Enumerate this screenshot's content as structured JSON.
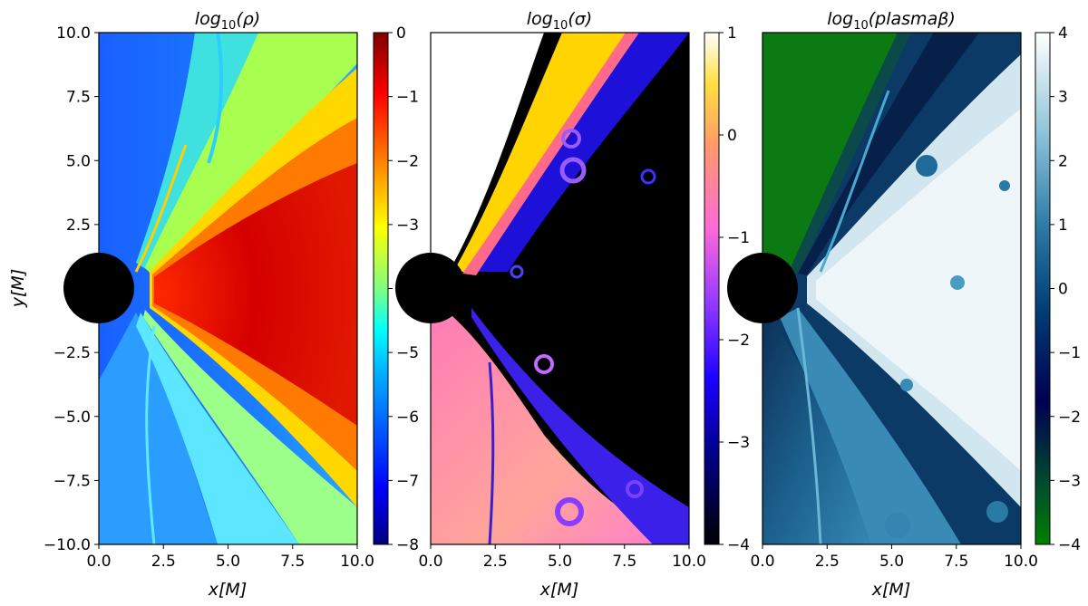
{
  "chart_data": [
    {
      "type": "heatmap",
      "title": "log₁₀(ρ)",
      "title_parts": {
        "pre": "log",
        "sub": "10",
        "post": "(ρ)"
      },
      "xlabel": "x[M]",
      "ylabel": "y[M]",
      "xlim": [
        0.0,
        10.0
      ],
      "ylim": [
        -10.0,
        10.0
      ],
      "x_ticks": [
        "0.0",
        "2.5",
        "5.0",
        "7.5",
        "10.0"
      ],
      "y_ticks": [
        "10.0",
        "7.5",
        "5.0",
        "2.5",
        "0.0",
        "−2.5",
        "−5.0",
        "−7.5",
        "−10.0"
      ],
      "colorbar": {
        "colormap": "jet",
        "range": [
          -8,
          0
        ],
        "ticks": [
          "0",
          "−1",
          "−2",
          "−3",
          "−4",
          "−5",
          "−6",
          "−7",
          "−8"
        ],
        "colors": [
          "#00007f",
          "#0000ff",
          "#007fff",
          "#00ffff",
          "#7fff7f",
          "#ffff00",
          "#ff7f00",
          "#ff0000",
          "#7f0000"
        ]
      },
      "black_hole_radius": 1.3,
      "colors": {
        "background": "#1e74ff",
        "jet": "#4fd3ff",
        "disk": "#e81c00",
        "wedge_edge": "#ffd500"
      }
    },
    {
      "type": "heatmap",
      "title": "log₁₀(σ)",
      "title_parts": {
        "pre": "log",
        "sub": "10",
        "post": "(σ)"
      },
      "xlabel": "x[M]",
      "ylabel": "",
      "xlim": [
        0.0,
        10.0
      ],
      "ylim": [
        -10.0,
        10.0
      ],
      "x_ticks": [
        "0.0",
        "2.5",
        "5.0",
        "7.5",
        "10.0"
      ],
      "colorbar": {
        "colormap": "gnuplot2",
        "range": [
          -4,
          1
        ],
        "ticks": [
          "1",
          "0",
          "−1",
          "−2",
          "−3",
          "−4"
        ],
        "colors": [
          "#000000",
          "#0000ff",
          "#7a19ff",
          "#ff5fd6",
          "#ffb060",
          "#ffff40",
          "#ffffff"
        ]
      },
      "black_hole_radius": 1.3,
      "colors": {
        "background": "#000000",
        "jet": "#ffffff",
        "lower_sheath": "#ff8cb4",
        "edge": "#ffd800",
        "eddies": "#6a3cff"
      }
    },
    {
      "type": "heatmap",
      "title": "log₁₀(plasmaβ)",
      "title_parts": {
        "pre": "log",
        "sub": "10",
        "post": "(plasmaβ)"
      },
      "xlabel": "x[M]",
      "ylabel": "",
      "xlim": [
        0.0,
        10.0
      ],
      "ylim": [
        -10.0,
        10.0
      ],
      "x_ticks": [
        "0.0",
        "2.5",
        "5.0",
        "7.5",
        "10.0"
      ],
      "colorbar": {
        "colormap": "ocean",
        "range": [
          -4,
          4
        ],
        "ticks": [
          "4",
          "3",
          "2",
          "1",
          "0",
          "−1",
          "−2",
          "−3",
          "−4"
        ],
        "colors": [
          "#008000",
          "#004040",
          "#000060",
          "#003080",
          "#1a6a9a",
          "#5aa0bd",
          "#a8d4e2",
          "#ffffff"
        ]
      },
      "black_hole_radius": 1.3,
      "colors": {
        "jet": "#0a7a10",
        "sheath": "#0c3a66",
        "disk": "#dcecf4",
        "eddies": "#2a7aa6"
      }
    }
  ]
}
